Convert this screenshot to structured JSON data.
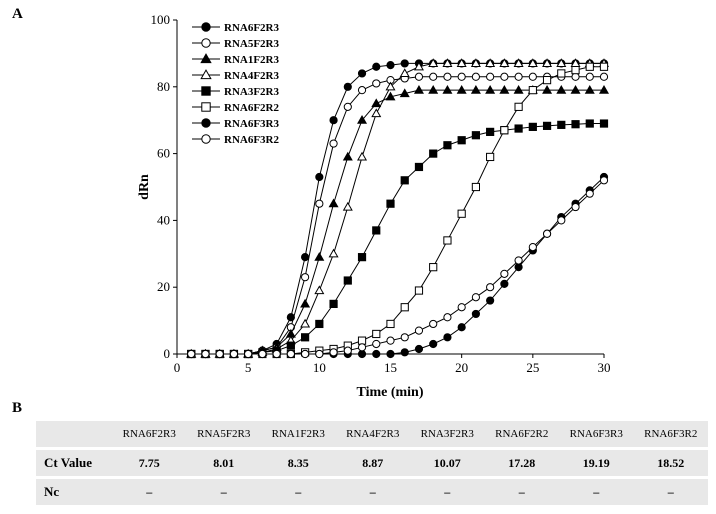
{
  "panels": {
    "a": "A",
    "b": "B"
  },
  "chart_data": {
    "type": "line",
    "title": "",
    "xlabel": "Time (min)",
    "ylabel": "dRn",
    "xlim": [
      0,
      30
    ],
    "ylim": [
      0,
      100
    ],
    "xticks": [
      0,
      5,
      10,
      15,
      20,
      25,
      30
    ],
    "yticks": [
      0,
      20,
      40,
      60,
      80,
      100
    ],
    "x": [
      1,
      2,
      3,
      4,
      5,
      6,
      7,
      8,
      9,
      10,
      11,
      12,
      13,
      14,
      15,
      16,
      17,
      18,
      19,
      20,
      21,
      22,
      23,
      24,
      25,
      26,
      27,
      28,
      29,
      30
    ],
    "series": [
      {
        "name": "RNA6F2R3",
        "marker": "circle",
        "fill": "filled",
        "values": [
          0,
          0,
          0,
          0,
          0,
          1,
          3,
          11,
          29,
          53,
          70,
          80,
          84,
          86,
          86.5,
          87,
          87,
          87,
          87,
          87,
          87,
          87,
          87,
          87,
          87,
          87,
          87,
          87,
          87,
          87
        ]
      },
      {
        "name": "RNA5F2R3",
        "marker": "circle",
        "fill": "open",
        "values": [
          0,
          0,
          0,
          0,
          0,
          1,
          2,
          8,
          23,
          45,
          63,
          74,
          79,
          81,
          82,
          82.5,
          83,
          83,
          83,
          83,
          83,
          83,
          83,
          83,
          83,
          83,
          83,
          83,
          83,
          83
        ]
      },
      {
        "name": "RNA1F2R3",
        "marker": "triangle",
        "fill": "filled",
        "values": [
          0,
          0,
          0,
          0,
          0,
          1,
          2,
          6,
          15,
          29,
          45,
          59,
          70,
          75,
          77,
          78,
          79,
          79,
          79,
          79,
          79,
          79,
          79,
          79,
          79,
          79,
          79,
          79,
          79,
          79
        ]
      },
      {
        "name": "RNA4F2R3",
        "marker": "triangle",
        "fill": "open",
        "values": [
          0,
          0,
          0,
          0,
          0,
          0.5,
          1.5,
          4,
          9,
          19,
          30,
          44,
          59,
          72,
          80,
          84,
          86,
          87,
          87,
          87,
          87,
          87,
          87,
          87,
          87,
          87,
          87,
          87,
          87,
          87
        ]
      },
      {
        "name": "RNA3F2R3",
        "marker": "square",
        "fill": "filled",
        "values": [
          0,
          0,
          0,
          0,
          0,
          0.5,
          1,
          2.5,
          5,
          9,
          15,
          22,
          29,
          37,
          45,
          52,
          56,
          60,
          62.5,
          64,
          65.5,
          66.5,
          67,
          67.5,
          68,
          68.3,
          68.6,
          68.8,
          69,
          69
        ]
      },
      {
        "name": "RNA6F2R2",
        "marker": "square",
        "fill": "open",
        "values": [
          0,
          0,
          0,
          0,
          0,
          0,
          0,
          0,
          0.5,
          1,
          1.5,
          2.5,
          4,
          6,
          9,
          14,
          19,
          26,
          34,
          42,
          50,
          59,
          67,
          74,
          79,
          82,
          84,
          85,
          86,
          86
        ]
      },
      {
        "name": "RNA6F3R3",
        "marker": "circle",
        "fill": "filled",
        "values": [
          0,
          0,
          0,
          0,
          0,
          0,
          0,
          0,
          0,
          0,
          0,
          0,
          0,
          0,
          0,
          0.5,
          1.5,
          3,
          5,
          8,
          12,
          16,
          21,
          26,
          31,
          36,
          41,
          45,
          49,
          53
        ]
      },
      {
        "name": "RNA6F3R2",
        "marker": "circle",
        "fill": "open",
        "values": [
          0,
          0,
          0,
          0,
          0,
          0,
          0,
          0,
          0,
          0,
          0.5,
          1,
          2,
          3,
          4,
          5,
          7,
          9,
          11,
          14,
          17,
          20,
          24,
          28,
          32,
          36,
          40,
          44,
          48,
          52
        ]
      }
    ]
  },
  "table": {
    "columns": [
      "",
      "RNA6F2R3",
      "RNA5F2R3",
      "RNA1F2R3",
      "RNA4F2R3",
      "RNA3F2R3",
      "RNA6F2R2",
      "RNA6F3R3",
      "RNA6F3R2"
    ],
    "rows": [
      {
        "label": "Ct Value",
        "values": [
          "7.75",
          "8.01",
          "8.35",
          "8.87",
          "10.07",
          "17.28",
          "19.19",
          "18.52"
        ]
      },
      {
        "label": "Nc",
        "values": [
          "–",
          "–",
          "–",
          "–",
          "–",
          "–",
          "–",
          "–"
        ]
      }
    ]
  }
}
